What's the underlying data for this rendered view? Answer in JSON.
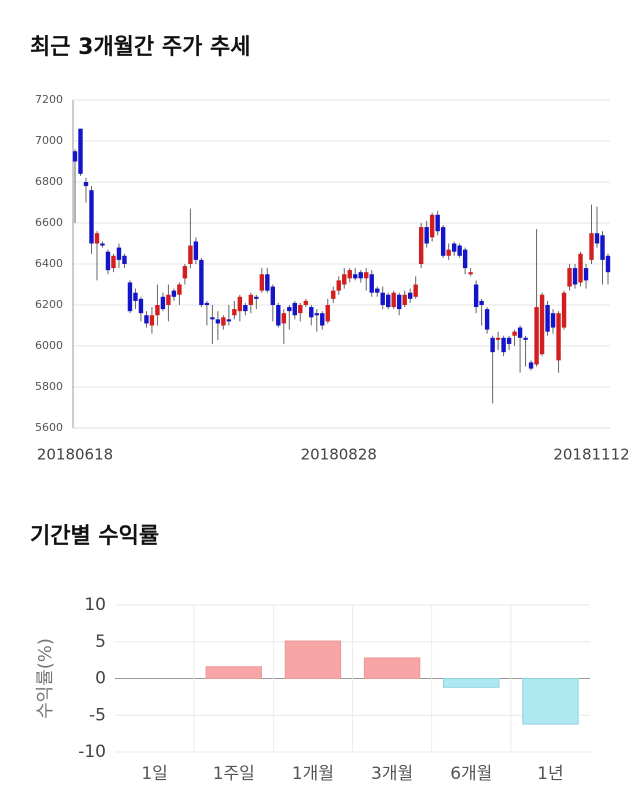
{
  "chart_data": [
    {
      "type": "candlestick",
      "title": "최근 3개월간 주가 추세",
      "categories": [
        "20180618",
        null,
        null,
        null,
        null,
        null,
        null,
        null,
        null,
        null,
        null,
        null,
        null,
        null,
        null,
        null,
        null,
        null,
        null,
        null,
        null,
        null,
        null,
        null,
        null,
        null,
        null,
        null,
        null,
        null,
        null,
        null,
        null,
        null,
        null,
        null,
        null,
        null,
        null,
        null,
        null,
        null,
        null,
        null,
        null,
        null,
        null,
        null,
        "20180828",
        null,
        null,
        null,
        null,
        null,
        null,
        null,
        null,
        null,
        null,
        null,
        null,
        null,
        null,
        null,
        null,
        null,
        null,
        null,
        null,
        null,
        null,
        null,
        null,
        null,
        null,
        null,
        null,
        null,
        null,
        null,
        null,
        null,
        null,
        null,
        null,
        null,
        null,
        null,
        null,
        null,
        null,
        null,
        null,
        null,
        "20181112",
        null,
        null,
        null
      ],
      "open": [
        6950,
        7060,
        6800,
        6760,
        6500,
        6500,
        6460,
        6380,
        6480,
        6440,
        6310,
        6260,
        6230,
        6150,
        6100,
        6150,
        6240,
        6200,
        6270,
        6250,
        6330,
        6400,
        6510,
        6420,
        6210,
        6140,
        6130,
        6100,
        6130,
        6150,
        6170,
        6200,
        6200,
        6240,
        6270,
        6350,
        6290,
        6200,
        6110,
        6190,
        6210,
        6160,
        6200,
        6190,
        6160,
        6160,
        6120,
        6230,
        6270,
        6300,
        6330,
        6350,
        6360,
        6330,
        6350,
        6280,
        6260,
        6250,
        6190,
        6250,
        6200,
        6260,
        6240,
        6400,
        6580,
        6530,
        6640,
        6580,
        6440,
        6500,
        6490,
        6470,
        6350,
        6300,
        6220,
        6180,
        6040,
        6030,
        6040,
        6040,
        6050,
        6090,
        6040,
        5920,
        5910,
        5960,
        6200,
        6160,
        5930,
        6090,
        6290,
        6380,
        6310,
        6380,
        6420,
        6550,
        6540,
        6440
      ],
      "high": [
        6960,
        7060,
        6820,
        6780,
        6560,
        6510,
        6470,
        6450,
        6500,
        6450,
        6320,
        6280,
        6240,
        6170,
        6190,
        6300,
        6260,
        6300,
        6280,
        6310,
        6400,
        6670,
        6530,
        6430,
        6220,
        6200,
        6170,
        6150,
        6200,
        6220,
        6250,
        6210,
        6260,
        6250,
        6380,
        6380,
        6300,
        6210,
        6180,
        6200,
        6220,
        6210,
        6230,
        6200,
        6180,
        6170,
        6230,
        6290,
        6340,
        6380,
        6380,
        6380,
        6370,
        6380,
        6370,
        6290,
        6290,
        6260,
        6270,
        6260,
        6270,
        6280,
        6340,
        6600,
        6610,
        6650,
        6660,
        6590,
        6500,
        6510,
        6500,
        6480,
        6380,
        6320,
        6230,
        6190,
        6050,
        6070,
        6050,
        6050,
        6080,
        6100,
        6050,
        5930,
        6570,
        6260,
        6220,
        6180,
        6170,
        6270,
        6400,
        6400,
        6460,
        6400,
        6690,
        6680,
        6560,
        6450
      ],
      "low": [
        6600,
        6830,
        6700,
        6450,
        6320,
        6480,
        6350,
        6360,
        6380,
        6380,
        6160,
        6180,
        6120,
        6090,
        6060,
        6100,
        6170,
        6120,
        6220,
        6200,
        6300,
        6380,
        6400,
        6190,
        6100,
        6010,
        6030,
        6080,
        6100,
        6130,
        6120,
        6150,
        6160,
        6180,
        6260,
        6260,
        6120,
        6090,
        6010,
        6080,
        6130,
        6120,
        6190,
        6100,
        6070,
        6080,
        6110,
        6210,
        6250,
        6280,
        6310,
        6320,
        6310,
        6270,
        6240,
        6240,
        6180,
        6180,
        6180,
        6150,
        6190,
        6210,
        6230,
        6380,
        6480,
        6510,
        6540,
        6430,
        6420,
        6440,
        6430,
        6350,
        6340,
        6160,
        6100,
        6060,
        5720,
        5980,
        5950,
        5980,
        6000,
        5870,
        5900,
        5880,
        5900,
        5950,
        6050,
        6060,
        5870,
        6080,
        6270,
        6280,
        6290,
        6280,
        6400,
        6480,
        6300,
        6300
      ],
      "close": [
        6900,
        6840,
        6780,
        6500,
        6550,
        6490,
        6370,
        6440,
        6420,
        6400,
        6170,
        6220,
        6160,
        6110,
        6150,
        6200,
        6180,
        6250,
        6240,
        6300,
        6390,
        6490,
        6420,
        6200,
        6200,
        6130,
        6110,
        6140,
        6120,
        6180,
        6240,
        6170,
        6250,
        6230,
        6350,
        6270,
        6200,
        6100,
        6160,
        6170,
        6150,
        6200,
        6220,
        6140,
        6150,
        6100,
        6200,
        6270,
        6320,
        6350,
        6370,
        6330,
        6330,
        6360,
        6260,
        6260,
        6200,
        6190,
        6260,
        6180,
        6250,
        6230,
        6300,
        6580,
        6500,
        6640,
        6560,
        6440,
        6470,
        6460,
        6440,
        6380,
        6360,
        6190,
        6200,
        6080,
        5970,
        6040,
        5970,
        6010,
        6070,
        6040,
        6030,
        5890,
        6190,
        6250,
        6070,
        6090,
        6160,
        6260,
        6380,
        6300,
        6450,
        6320,
        6550,
        6500,
        6420,
        6360
      ],
      "up_color": "#d21e1e",
      "down_color": "#1414c8",
      "ylim": [
        5600,
        7200
      ],
      "yticks": [
        5600,
        5800,
        6000,
        6200,
        6400,
        6600,
        6800,
        7000,
        7200
      ],
      "grid": true
    },
    {
      "type": "bar",
      "title": "기간별 수익률",
      "y_label": "수익률(%)",
      "categories": [
        "1일",
        "1주일",
        "1개월",
        "3개월",
        "6개월",
        "1년"
      ],
      "values": [
        0,
        1.6,
        5.1,
        2.8,
        -1.2,
        -6.2
      ],
      "positive_color": "#f8a5a5",
      "negative_color": "#aee9f2",
      "ylim": [
        -10,
        10
      ],
      "yticks": [
        -10,
        -5,
        0,
        5,
        10
      ],
      "grid": true
    }
  ]
}
